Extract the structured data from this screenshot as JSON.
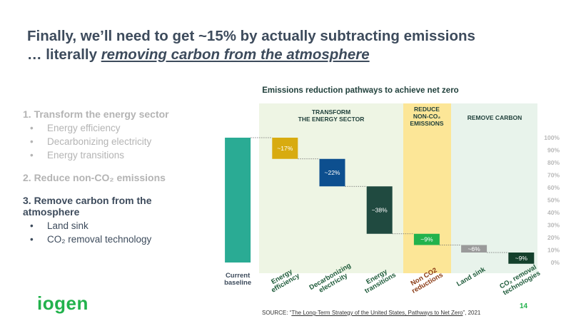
{
  "title": {
    "line1": "Finally, we’ll need to get ~15% by actually subtracting emissions",
    "line2_prefix": "… literally ",
    "line2_emphasis": "removing carbon from the atmosphere"
  },
  "agenda": [
    {
      "heading": "1. Transform the energy sector",
      "items": [
        "Energy efficiency",
        "Decarbonizing electricity",
        "Energy transitions"
      ]
    },
    {
      "heading": "2. Reduce non-CO₂ emissions",
      "items": []
    },
    {
      "heading": "3. Remove carbon from the atmosphere",
      "items": [
        "Land sink",
        "CO₂ removal technology"
      ]
    }
  ],
  "logo": "iogen",
  "page_number": "14",
  "source": {
    "prefix": "SOURCE: “",
    "link": "The Long-Term Strategy of the United States, Pathways to Net Zero",
    "suffix": "”, 2021"
  },
  "chart_data": {
    "type": "waterfall",
    "title": "Emissions reduction pathways to achieve net zero",
    "annotations": [
      "TRANSFORM THE ENERGY SECTOR",
      "REDUCE NON-CO₂ EMISSIONS",
      "REMOVE CARBON"
    ],
    "categories": [
      "Current baseline",
      "Energy efficiency",
      "Decarbonizing electricity",
      "Energy transitions",
      "Non CO2 reductions",
      "Land sink",
      "CO₂ removal technologies"
    ],
    "values": [
      100,
      17,
      22,
      38,
      9,
      6,
      9
    ],
    "value_labels": [
      null,
      "~17%",
      "~22%",
      "~38%",
      "~9%",
      "~6%",
      "~9%"
    ],
    "colors": [
      "#2aab94",
      "#d8ab10",
      "#0d4f8f",
      "#204a40",
      "#22b24c",
      "#9a9a9a",
      "#14402c"
    ],
    "ylim": [
      0,
      100
    ],
    "yticks": [
      {
        "value": 0,
        "label": "0%"
      },
      {
        "value": 10,
        "label": "10%"
      },
      {
        "value": 20,
        "label": "20%"
      },
      {
        "value": 30,
        "label": "30%"
      },
      {
        "value": 40,
        "label": "40%"
      },
      {
        "value": 50,
        "label": "50%"
      },
      {
        "value": 60,
        "label": "60%"
      },
      {
        "value": 70,
        "label": "70%"
      },
      {
        "value": 80,
        "label": "80%"
      },
      {
        "value": 90,
        "label": "90%"
      },
      {
        "value": 100,
        "label": "100%"
      }
    ]
  }
}
